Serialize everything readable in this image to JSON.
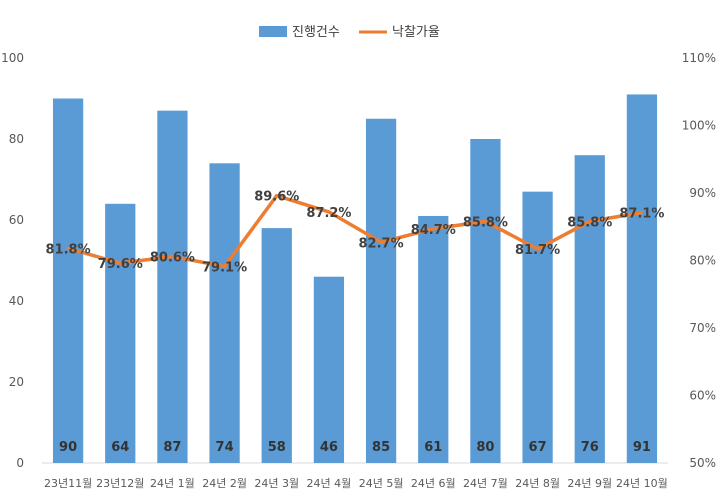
{
  "colors": {
    "bar": "#5b9bd5",
    "line": "#ed7d31"
  },
  "chart_data": {
    "type": "bar+line",
    "categories": [
      "23년11월",
      "23년12월",
      "24년 1월",
      "24년 2월",
      "24년 3월",
      "24년 4월",
      "24년 5월",
      "24년 6월",
      "24년 7월",
      "24년 8월",
      "24년 9월",
      "24년 10월"
    ],
    "series": [
      {
        "name": "진행건수",
        "type": "bar",
        "axis": "left",
        "values": [
          90,
          64,
          87,
          74,
          58,
          46,
          85,
          61,
          80,
          67,
          76,
          91
        ],
        "labels": [
          "90",
          "64",
          "87",
          "74",
          "58",
          "46",
          "85",
          "61",
          "80",
          "67",
          "76",
          "91"
        ]
      },
      {
        "name": "낙찰가율",
        "type": "line",
        "axis": "right",
        "values": [
          81.8,
          79.6,
          80.6,
          79.1,
          89.6,
          87.2,
          82.7,
          84.7,
          85.8,
          81.7,
          85.8,
          87.1
        ],
        "labels": [
          "81.8%",
          "79.6%",
          "80.6%",
          "79.1%",
          "89.6%",
          "87.2%",
          "82.7%",
          "84.7%",
          "85.8%",
          "81.7%",
          "85.8%",
          "87.1%"
        ]
      }
    ],
    "y_left": {
      "min": 0,
      "max": 100,
      "ticks": [
        "0",
        "20",
        "40",
        "60",
        "80",
        "100"
      ]
    },
    "y_right": {
      "min": 50,
      "max": 110,
      "ticks": [
        "50%",
        "60%",
        "70%",
        "80%",
        "90%",
        "100%",
        "110%"
      ]
    },
    "grid": false,
    "legend": "top-center"
  }
}
